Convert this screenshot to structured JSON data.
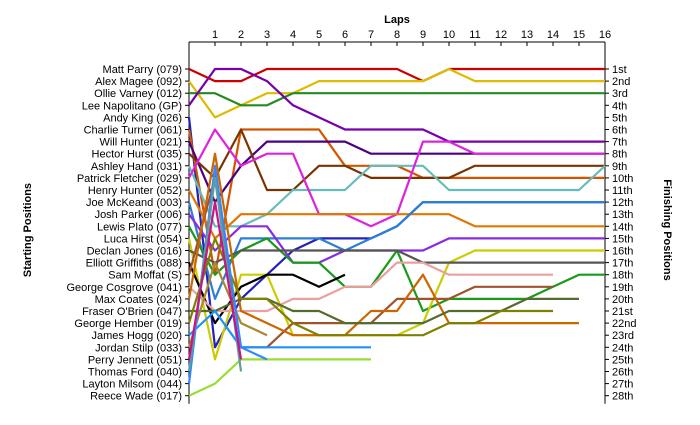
{
  "chart_data": {
    "type": "line",
    "title": "Laps",
    "ylabel_left": "Starting Positions",
    "ylabel_right": "Finishing Positions",
    "laps": [
      1,
      2,
      3,
      4,
      5,
      6,
      7,
      8,
      9,
      10,
      11,
      12,
      13,
      14,
      15,
      16
    ],
    "starting_positions": [
      "Matt Parry (079)",
      "Alex Magee (092)",
      "Ollie Varney (012)",
      "Lee Napolitano (GP)",
      "Andy King (026)",
      "Charlie Turner (061)",
      "Will Hunter (021)",
      "Hector Hurst (035)",
      "Ashley Hand (031)",
      "Patrick Fletcher (029)",
      "Henry Hunter (052)",
      "Joe McKeand (003)",
      "Josh Parker (006)",
      "Lewis Plato (077)",
      "Luca Hirst (054)",
      "Declan Jones (016)",
      "Elliott Griffiths (088)",
      "Sam Moffat (S)",
      "George Cosgrove (041)",
      "Max Coates (024)",
      "Fraser O'Brien (047)",
      "George Hember (019)",
      "James Hogg (020)",
      "Jordan Stilp (033)",
      "Perry Jennett (051)",
      "Thomas Ford (040)",
      "Layton Milsom (044)",
      "Reece Wade (017)"
    ],
    "finishing_positions": [
      "1st",
      "2nd",
      "3rd",
      "4th",
      "5th",
      "6th",
      "7th",
      "8th",
      "9th",
      "10th",
      "11th",
      "12th",
      "13th",
      "14th",
      "15th",
      "16th",
      "17th",
      "18th",
      "19th",
      "20th",
      "21st",
      "22nd",
      "23rd",
      "24th",
      "25th",
      "26th",
      "27th",
      "28th"
    ],
    "series": [
      {
        "color": "#cc0000",
        "positions": [
          1,
          2,
          2,
          1,
          1,
          1,
          1,
          1,
          1,
          2,
          1,
          1,
          1,
          1,
          1,
          1,
          1
        ]
      },
      {
        "color": "#ddbb00",
        "positions": [
          2,
          5,
          4,
          3,
          3,
          2,
          2,
          2,
          2,
          2,
          1,
          2,
          2,
          2,
          2,
          2,
          2
        ]
      },
      {
        "color": "#228b22",
        "positions": [
          3,
          3,
          4,
          4,
          3,
          3,
          3,
          3,
          3,
          3,
          3,
          3,
          3,
          3,
          3,
          3,
          3
        ]
      },
      {
        "color": "#7700aa",
        "positions": [
          4,
          1,
          1,
          2,
          4,
          5,
          6,
          6,
          6,
          6,
          7,
          7,
          7,
          7,
          7,
          7,
          7
        ]
      },
      {
        "color": "#2222bb",
        "positions": [
          5,
          24,
          20,
          18,
          16,
          15,
          15,
          15,
          14,
          12,
          12,
          12,
          12,
          12,
          12,
          12,
          12
        ]
      },
      {
        "color": "#d45500",
        "positions": [
          6,
          18,
          6,
          6,
          6,
          6,
          9,
          9,
          9,
          10,
          10,
          10,
          10,
          10,
          10,
          10,
          10
        ]
      },
      {
        "color": "#4a0080",
        "positions": [
          7,
          12,
          9,
          7,
          7,
          7,
          7,
          8,
          8,
          8,
          8,
          8,
          8,
          8,
          8,
          8,
          8
        ]
      },
      {
        "color": "#7a3300",
        "positions": [
          8,
          10,
          6,
          11,
          11,
          9,
          9,
          10,
          10,
          10,
          10,
          9,
          9,
          9,
          9,
          9,
          9
        ]
      },
      {
        "color": "#66bbbb",
        "positions": [
          9,
          14,
          14,
          13,
          11,
          11,
          11,
          9,
          9,
          9,
          11,
          11,
          11,
          11,
          11,
          11,
          9
        ]
      },
      {
        "color": "#dd22dd",
        "positions": [
          10,
          6,
          9,
          8,
          8,
          13,
          13,
          14,
          13,
          7,
          7,
          8,
          8,
          8,
          8,
          8,
          8
        ]
      },
      {
        "color": "#e07700",
        "positions": [
          11,
          15,
          13,
          13,
          13,
          13,
          13,
          13,
          13,
          13,
          13,
          14,
          14,
          14,
          14,
          14,
          14
        ]
      },
      {
        "color": "#2b7fd4",
        "positions": [
          12,
          20,
          15,
          15,
          15,
          15,
          16,
          15,
          14,
          12,
          12,
          12,
          12,
          12,
          12,
          12,
          12
        ]
      },
      {
        "color": "#8a2be2",
        "positions": [
          13,
          16,
          14,
          14,
          17,
          17,
          16,
          16,
          16,
          16,
          15,
          15,
          15,
          15,
          15,
          15,
          15
        ]
      },
      {
        "color": "#1a9a1a",
        "positions": [
          14,
          18,
          16,
          15,
          17,
          17,
          19,
          19,
          16,
          21,
          20,
          20,
          20,
          20,
          19,
          18,
          18
        ]
      },
      {
        "color": "#cccc00",
        "positions": [
          15,
          25,
          18,
          18,
          23,
          23,
          23,
          23,
          23,
          22,
          17,
          16,
          16,
          16,
          16,
          16,
          16
        ]
      },
      {
        "color": "#555555",
        "positions": [
          16,
          17,
          16,
          16,
          16,
          16,
          16,
          16,
          16,
          17,
          17,
          17,
          17,
          17,
          17,
          17,
          17
        ]
      },
      {
        "color": "#000000",
        "positions": [
          17,
          22,
          19,
          18,
          18,
          19,
          18,
          null,
          null,
          null,
          null,
          null,
          null,
          null,
          null,
          null,
          null
        ]
      },
      {
        "color": "#a0522d",
        "positions": [
          18,
          10,
          24,
          24,
          22,
          22,
          22,
          22,
          20,
          20,
          20,
          19,
          19,
          19,
          19,
          null,
          null
        ]
      },
      {
        "color": "#e8a0a0",
        "positions": [
          19,
          21,
          21,
          21,
          20,
          20,
          19,
          19,
          17,
          17,
          18,
          18,
          18,
          18,
          18,
          null,
          null
        ]
      },
      {
        "color": "#cc6600",
        "positions": [
          20,
          8,
          21,
          22,
          23,
          23,
          23,
          21,
          21,
          18,
          22,
          22,
          22,
          22,
          22,
          22,
          null
        ]
      },
      {
        "color": "#556b2f",
        "positions": [
          21,
          21,
          20,
          20,
          21,
          21,
          22,
          22,
          22,
          22,
          21,
          21,
          21,
          20,
          20,
          20,
          null
        ]
      },
      {
        "color": "#808000",
        "positions": [
          22,
          15,
          20,
          20,
          22,
          23,
          23,
          23,
          23,
          23,
          22,
          22,
          21,
          21,
          21,
          null,
          null
        ]
      },
      {
        "color": "#1e90ff",
        "positions": [
          23,
          21,
          24,
          24,
          24,
          24,
          24,
          24,
          null,
          null,
          null,
          null,
          null,
          null,
          null,
          null,
          null
        ]
      },
      {
        "color": "#aa8833",
        "positions": [
          24,
          17,
          22,
          23,
          null,
          null,
          null,
          null,
          null,
          null,
          null,
          null,
          null,
          null,
          null,
          null,
          null
        ]
      },
      {
        "color": "#99dd33",
        "positions": [
          28,
          27,
          25,
          25,
          25,
          25,
          25,
          25,
          null,
          null,
          null,
          null,
          null,
          null,
          null,
          null,
          null
        ]
      },
      {
        "color": "#3388ff",
        "positions": [
          27,
          9,
          24,
          25,
          null,
          null,
          null,
          null,
          null,
          null,
          null,
          null,
          null,
          null,
          null,
          null,
          null
        ]
      },
      {
        "color": "#5f9ea0",
        "positions": [
          26,
          10,
          26,
          null,
          null,
          null,
          null,
          null,
          null,
          null,
          null,
          null,
          null,
          null,
          null,
          null,
          null
        ]
      },
      {
        "color": "#c71585",
        "positions": [
          25,
          12,
          25,
          null,
          null,
          null,
          null,
          null,
          null,
          null,
          null,
          null,
          null,
          null,
          null,
          null,
          null
        ]
      }
    ]
  }
}
